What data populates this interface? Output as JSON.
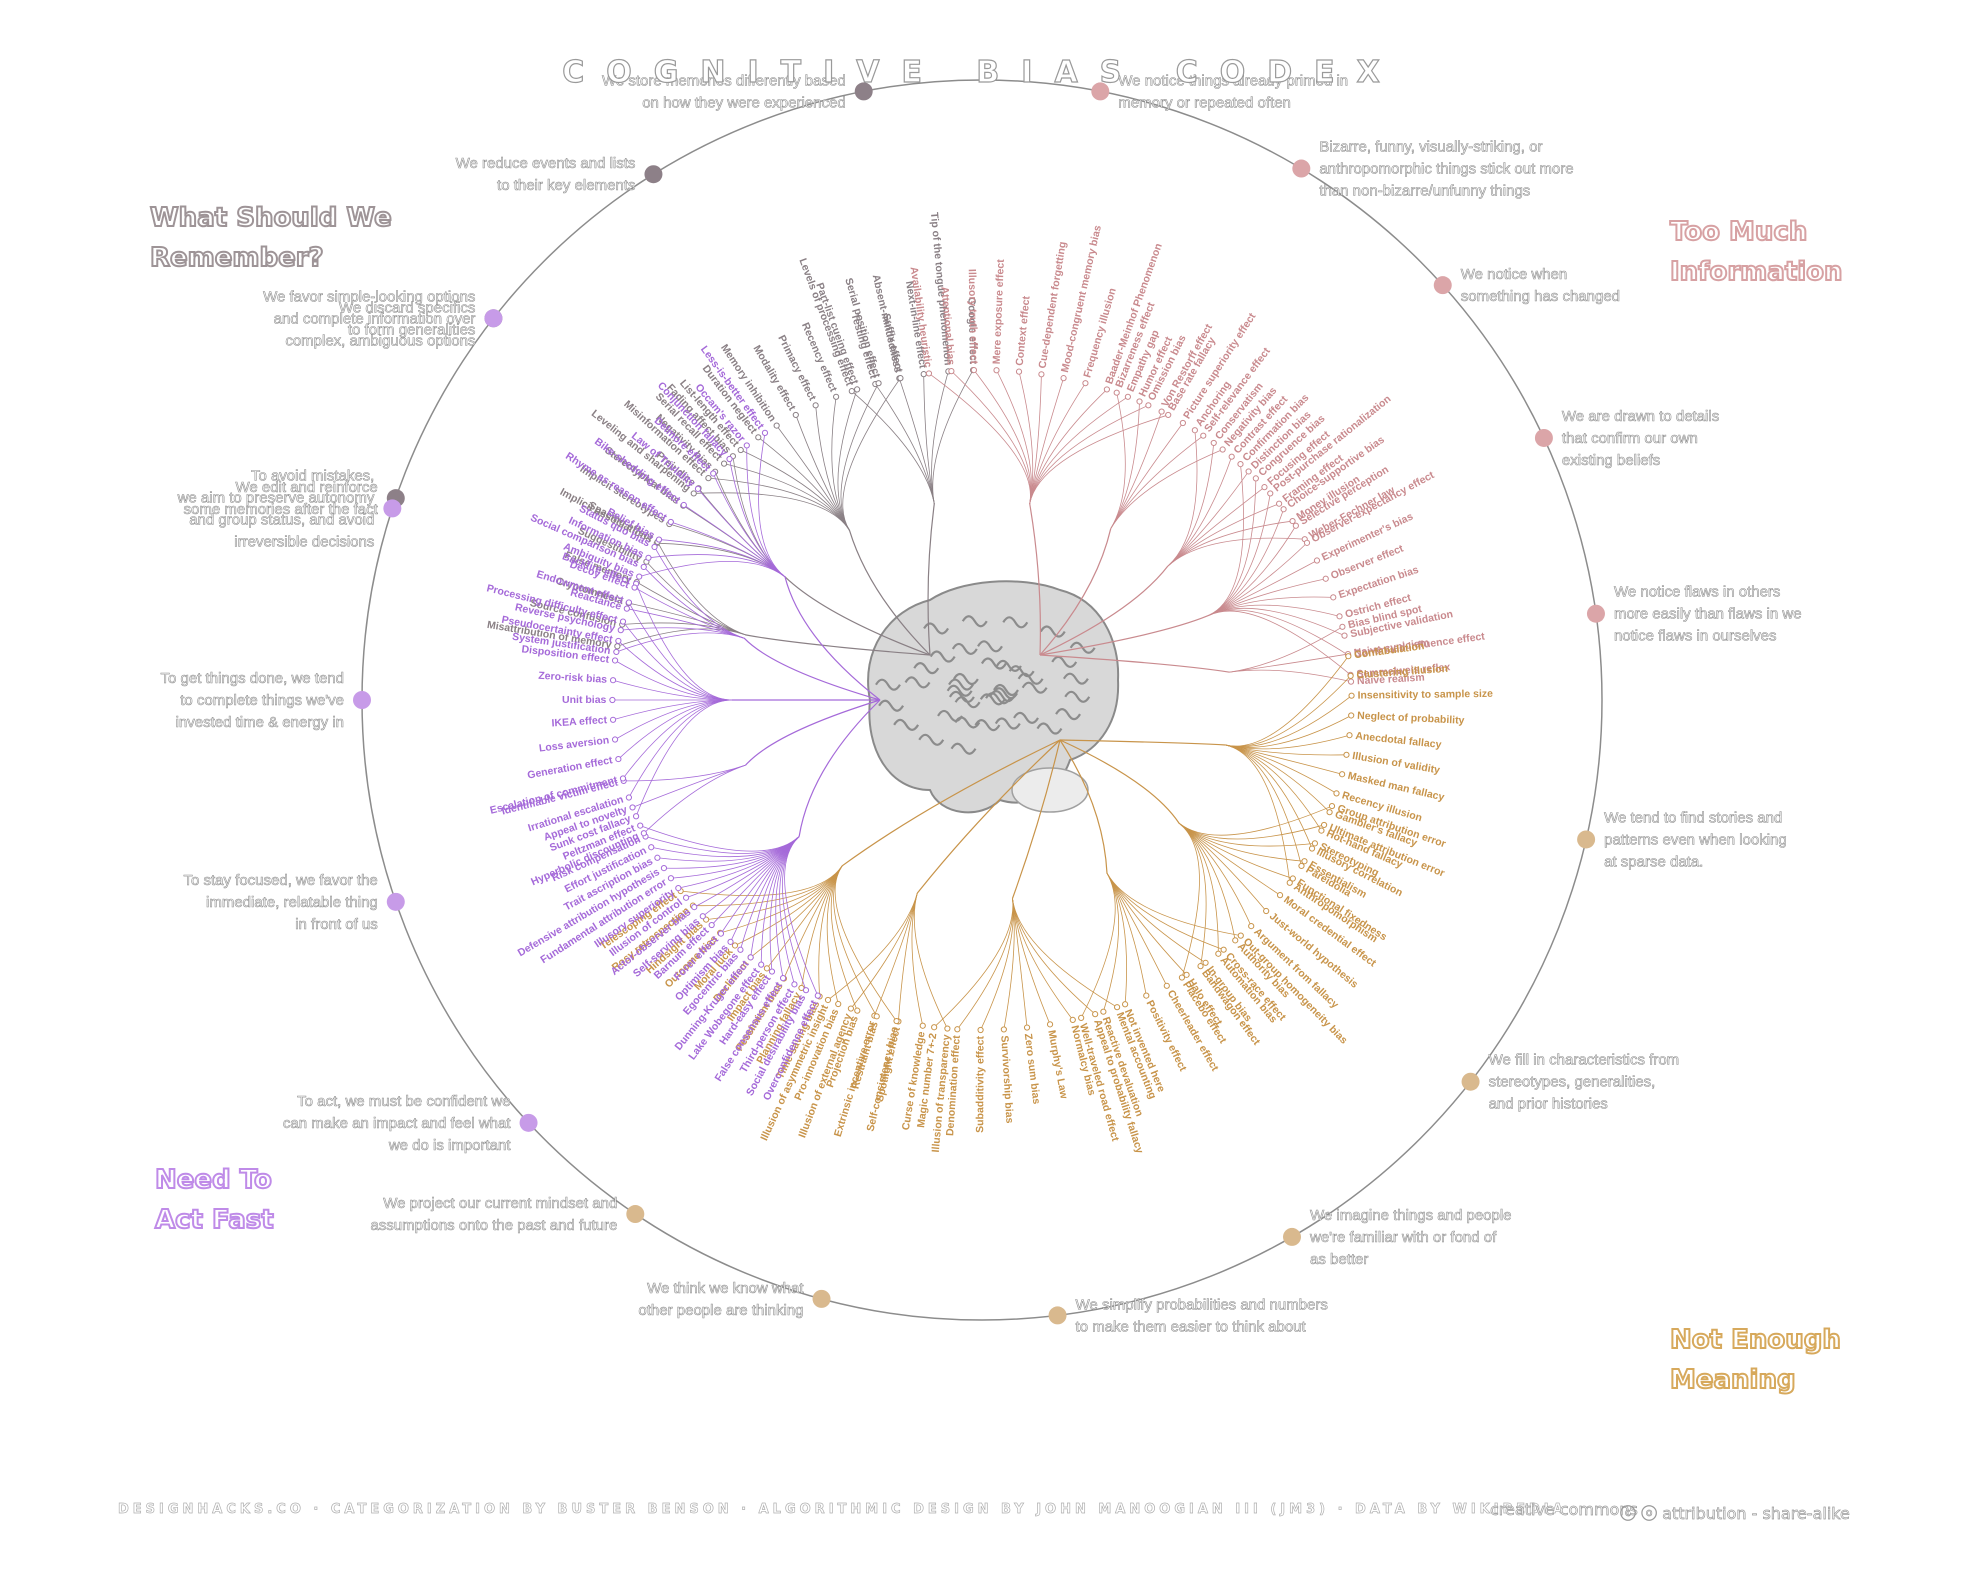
{
  "title": "COGNITIVE BIAS CODEX",
  "quadrants": {
    "remember": [
      "What Should We",
      "Remember?"
    ],
    "information": [
      "Too Much",
      "Information"
    ],
    "fast": [
      "Need To",
      "Act Fast"
    ],
    "meaning": [
      "Not Enough",
      "Meaning"
    ]
  },
  "colors": {
    "remember": "#8a8085",
    "information": "#c98a8e",
    "fast": "#a56ad9",
    "meaning": "#c8944a",
    "circle": "#8c8c8c",
    "brain": "#bdbdbd"
  },
  "clusters": [
    {
      "group": "remember",
      "node_color": "#8d8088",
      "desc": [
        "We store memories differently based",
        "on how they were experienced"
      ],
      "biases": [
        "Levels of processing effect",
        "Testing effect",
        "Absent-mindedness",
        "Next-in-line effect",
        "Tip of the tongue phenomenon",
        "Google effect"
      ]
    },
    {
      "group": "remember",
      "node_color": "#8d8088",
      "desc": [
        "We reduce events and lists",
        "to their key elements"
      ],
      "biases": [
        "Leveling and sharpening",
        "Misinformation effect",
        "Serial recall effect",
        "List-length effect",
        "Duration neglect",
        "Memory inhibition",
        "Modality effect",
        "Primacy effect",
        "Recency effect",
        "Part-list cueing effect",
        "Serial position effect",
        "Suffix effect"
      ]
    },
    {
      "group": "remember",
      "node_color": "#8d8088",
      "desc": [
        "We discard specifics",
        "to form generalities"
      ],
      "biases": [
        "Implicit associations",
        "Implicit stereotypes",
        "Stereotypical bias",
        "Prejudice",
        "Negativity bias",
        "Fading affect bias"
      ]
    },
    {
      "group": "remember",
      "node_color": "#8d8088",
      "desc": [
        "We edit and reinforce",
        "some memories after the fact"
      ],
      "biases": [
        "Misattribution of memory",
        "Source confusion",
        "Cryptomnesia",
        "False memory",
        "Suggestibility",
        "Spacing effect"
      ]
    },
    {
      "group": "information",
      "node_color": "#dba5a8",
      "desc": [
        "We notice things already primed in",
        "memory or repeated often"
      ],
      "biases": [
        "Availability heuristic",
        "Attentional bias",
        "Illusory truth effect",
        "Mere exposure effect",
        "Context effect",
        "Cue-dependent forgetting",
        "Mood-congruent memory bias",
        "Frequency illusion",
        "Baader-Meinhof Phenomenon",
        "Empathy gap",
        "Omission bias",
        "Base rate fallacy"
      ]
    },
    {
      "group": "information",
      "node_color": "#dba5a8",
      "desc": [
        "Bizarre, funny, visually-striking, or",
        "anthropomorphic things stick out more",
        "than non-bizarre/unfunny things"
      ],
      "biases": [
        "Bizarreness effect",
        "Humor effect",
        "Von Restorff effect",
        "Picture superiority effect",
        "Self-relevance effect",
        "Negativity bias"
      ]
    },
    {
      "group": "information",
      "node_color": "#dba5a8",
      "desc": [
        "We notice when",
        "something has changed"
      ],
      "biases": [
        "Anchoring",
        "Conservatism",
        "Contrast effect",
        "Distinction bias",
        "Focusing effect",
        "Framing effect",
        "Money illusion",
        "Weber-Fechner law"
      ]
    },
    {
      "group": "information",
      "node_color": "#dba5a8",
      "desc": [
        "We are drawn to details",
        "that confirm our own",
        "existing beliefs"
      ],
      "biases": [
        "Confirmation bias",
        "Congruence bias",
        "Post-purchase rationalization",
        "Choice-supportive bias",
        "Selective perception",
        "Observer-expectancy effect",
        "Experimenter's bias",
        "Observer effect",
        "Expectation bias",
        "Ostrich effect",
        "Subjective validation",
        "Continued influence effect",
        "Semmelweis reflex"
      ]
    },
    {
      "group": "information",
      "node_color": "#dba5a8",
      "desc": [
        "We notice flaws in others",
        "more easily than flaws in we",
        "notice flaws in ourselves"
      ],
      "biases": [
        "Bias blind spot",
        "Naive cynicism",
        "Naive realism"
      ]
    },
    {
      "group": "meaning",
      "node_color": "#d9b98e",
      "desc": [
        "We tend to find stories and",
        "patterns even when looking",
        "at sparse data."
      ],
      "biases": [
        "Confabulation",
        "Clustering illusion",
        "Insensitivity to sample size",
        "Neglect of probability",
        "Anecdotal fallacy",
        "Illusion of validity",
        "Masked man fallacy",
        "Recency illusion",
        "Gambler's fallacy",
        "Hot-hand fallacy",
        "Illusory correlation",
        "Pareidolia",
        "Anthropomorphism"
      ]
    },
    {
      "group": "meaning",
      "node_color": "#d9b98e",
      "desc": [
        "We fill in characteristics from",
        "stereotypes, generalities,",
        "and prior histories"
      ],
      "biases": [
        "Group attribution error",
        "Ultimate attribution error",
        "Stereotyping",
        "Essentialism",
        "Functional fixedness",
        "Moral credential effect",
        "Just-world hypothesis",
        "Argument from fallacy",
        "Authority bias",
        "Automation bias",
        "Bandwagon effect",
        "Placebo effect"
      ]
    },
    {
      "group": "meaning",
      "node_color": "#d9b98e",
      "desc": [
        "We imagine things and people",
        "we're familiar with or fond of",
        "as better"
      ],
      "biases": [
        "Out-group homogeneity bias",
        "Cross-race effect",
        "In-group bias",
        "Halo effect",
        "Cheerleader effect",
        "Positivity effect",
        "Not invented here",
        "Reactive devaluation",
        "Well-traveled road effect"
      ]
    },
    {
      "group": "meaning",
      "node_color": "#d9b98e",
      "desc": [
        "We simplify probabilities and numbers",
        "to make them easier to think about"
      ],
      "biases": [
        "Mental accounting",
        "Appeal to probability fallacy",
        "Normalcy bias",
        "Murphy's Law",
        "Zero sum bias",
        "Survivorship bias",
        "Subadditivity effect",
        "Denomination effect",
        "Magic number 7+-2"
      ]
    },
    {
      "group": "meaning",
      "node_color": "#d9b98e",
      "desc": [
        "We think we know what",
        "other people are thinking"
      ],
      "biases": [
        "Illusion of transparency",
        "Curse of knowledge",
        "Spotlight effect",
        "Extrinsic incentive error",
        "Illusion of external agency",
        "Illusion of asymmetric insight"
      ]
    },
    {
      "group": "meaning",
      "node_color": "#d9b98e",
      "desc": [
        "We project our current mindset and",
        "assumptions onto the past and future"
      ],
      "biases": [
        "Self-consistency bias",
        "Restraint bias",
        "Projection bias",
        "Pro-innovation bias",
        "Time-saving bias",
        "Planning fallacy",
        "Pessimism bias",
        "Impact bias",
        "Declinism",
        "Moral luck",
        "Outcome bias",
        "Hindsight bias",
        "Rosy retrospection",
        "Telescoping effect"
      ]
    },
    {
      "group": "fast",
      "node_color": "#c79be8",
      "desc": [
        "To act, we must be confident we",
        "can make an impact and feel what",
        "we do is important"
      ],
      "biases": [
        "Overconfidence effect",
        "Social desirability bias",
        "Third-person effect",
        "False consensus effect",
        "Hard-easy effect",
        "Lake Wobegone effect",
        "Dunning-Kruger effect",
        "Egocentric bias",
        "Optimism bias",
        "Forer effect",
        "Barnum effect",
        "Self-serving bias",
        "Actor-observer bias",
        "Illusion of control",
        "Illusory superiority",
        "Fundamental attribution error",
        "Defensive attribution hypothesis",
        "Trait ascription bias",
        "Effort justification",
        "Risk compensation",
        "Peltzman effect"
      ]
    },
    {
      "group": "fast",
      "node_color": "#c79be8",
      "desc": [
        "To stay focused, we favor the",
        "immediate, relatable thing",
        "in front of us"
      ],
      "biases": [
        "Hyperbolic discounting",
        "Appeal to novelty",
        "Identifiable victim effect"
      ]
    },
    {
      "group": "fast",
      "node_color": "#c79be8",
      "desc": [
        "To get things done, we tend",
        "to complete things we've",
        "invested time & energy in"
      ],
      "biases": [
        "Sunk cost fallacy",
        "Irrational escalation",
        "Escalation of commitment",
        "Generation effect",
        "Loss aversion",
        "IKEA effect",
        "Unit bias",
        "Zero-risk bias",
        "Disposition effect",
        "Pseudocertainty effect",
        "Processing difficulty effect",
        "Endowment effect",
        "Backfire effect"
      ]
    },
    {
      "group": "fast",
      "node_color": "#c79be8",
      "desc": [
        "To avoid mistakes,",
        "we aim to preserve autonomy",
        "and group status, and avoid",
        "irreversible decisions"
      ],
      "biases": [
        "System justification",
        "Reverse psychology",
        "Reactance",
        "Decoy effect",
        "Social comparison bias",
        "Status quo bias"
      ]
    },
    {
      "group": "fast",
      "node_color": "#c79be8",
      "desc": [
        "We favor simple-looking options",
        "and complete information over",
        "complex, ambiguous options"
      ],
      "biases": [
        "Ambiguity bias",
        "Information bias",
        "Belief bias",
        "Rhyme as reason effect",
        "Bike-shedding effect",
        "Law of Triviality",
        "Delmore effect",
        "Conjunction fallacy",
        "Occam's razor",
        "Less-is-better effect"
      ]
    }
  ],
  "footer": {
    "credits": "DESIGNHACKS.CO  ·  CATEGORIZATION BY BUSTER BENSON  ·  ALGORITHMIC DESIGN BY JOHN MANOOGIAN III (JM3)  ·  DATA BY WIKIPEDIA",
    "cc_logo": "creative commons",
    "license": "attribution - share-alike"
  }
}
